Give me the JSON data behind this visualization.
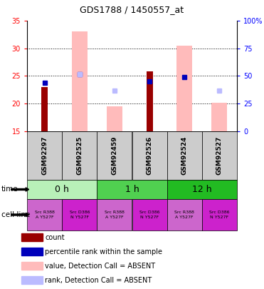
{
  "title": "GDS1788 / 1450557_at",
  "samples": [
    "GSM92297",
    "GSM92525",
    "GSM92459",
    "GSM92526",
    "GSM92524",
    "GSM92527"
  ],
  "count_values": [
    23.0,
    null,
    null,
    25.8,
    null,
    null
  ],
  "rank_values": [
    23.8,
    25.3,
    null,
    24.0,
    24.8,
    null
  ],
  "absent_value_bars": [
    null,
    33.0,
    19.5,
    null,
    30.5,
    20.1
  ],
  "absent_rank_points": [
    null,
    25.3,
    22.3,
    null,
    null,
    22.3
  ],
  "ylim_left": [
    15,
    35
  ],
  "ylim_right": [
    0,
    100
  ],
  "yticks_left": [
    15,
    20,
    25,
    30,
    35
  ],
  "yticks_right": [
    0,
    25,
    50,
    75,
    100
  ],
  "ytick_labels_right": [
    "0",
    "25",
    "50",
    "75",
    "100%"
  ],
  "time_groups": [
    {
      "label": "0 h",
      "start": 0,
      "end": 2,
      "color": "#b8f0b8"
    },
    {
      "label": "1 h",
      "start": 2,
      "end": 4,
      "color": "#50d050"
    },
    {
      "label": "12 h",
      "start": 4,
      "end": 6,
      "color": "#22bb22"
    }
  ],
  "cell_lines": [
    {
      "label": "Src R388\nA Y527F",
      "color": "#cc66cc"
    },
    {
      "label": "Src D386\nN Y527F",
      "color": "#cc22cc"
    },
    {
      "label": "Src R388\nA Y527F",
      "color": "#cc66cc"
    },
    {
      "label": "Src D386\nN Y527F",
      "color": "#cc22cc"
    },
    {
      "label": "Src R388\nA Y527F",
      "color": "#cc66cc"
    },
    {
      "label": "Src D386\nN Y527F",
      "color": "#cc22cc"
    }
  ],
  "color_count": "#990000",
  "color_rank": "#0000bb",
  "color_absent_value": "#ffbbbb",
  "color_absent_rank": "#bbbbff",
  "color_sample_bg": "#cccccc",
  "legend_items": [
    {
      "color": "#990000",
      "label": "count"
    },
    {
      "color": "#0000bb",
      "label": "percentile rank within the sample"
    },
    {
      "color": "#ffbbbb",
      "label": "value, Detection Call = ABSENT"
    },
    {
      "color": "#bbbbff",
      "label": "rank, Detection Call = ABSENT"
    }
  ]
}
